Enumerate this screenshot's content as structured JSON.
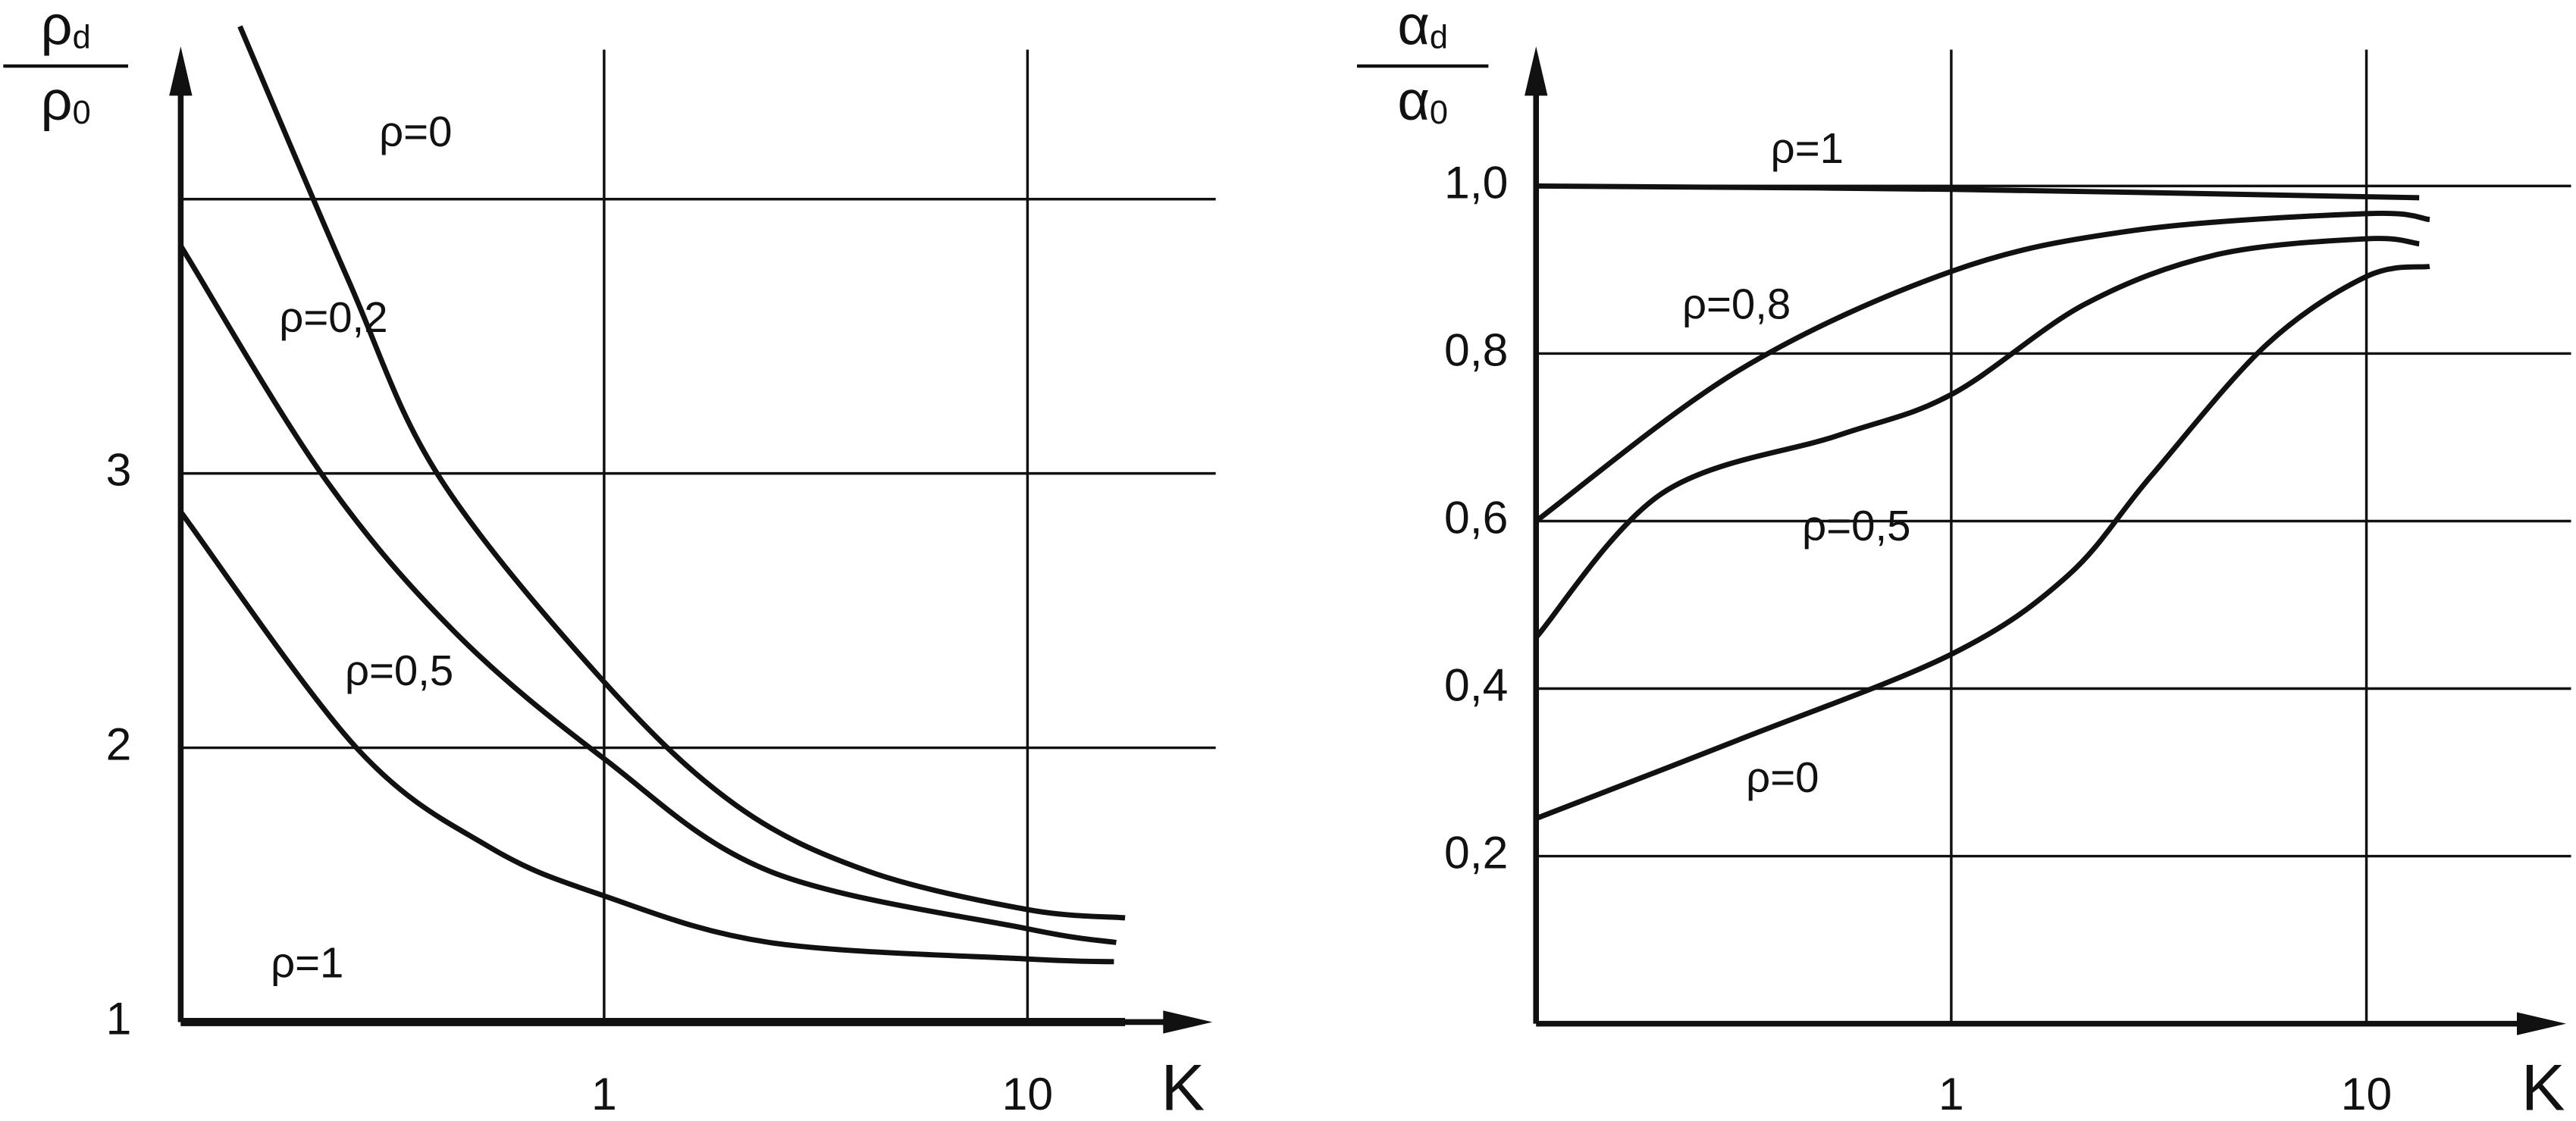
{
  "chart_data": [
    {
      "type": "line",
      "xscale": "log",
      "x_label": "K",
      "y_label": {
        "numerator": [
          "ρ",
          "d"
        ],
        "denominator": [
          "ρ",
          "0"
        ]
      },
      "xlim": [
        0.1,
        25
      ],
      "xticks": [
        1,
        10
      ],
      "ylim": [
        1,
        4.5
      ],
      "yticks": [
        1,
        2,
        3
      ],
      "ygrid": [
        2,
        3,
        4
      ],
      "grid": true,
      "color": "#111",
      "series": [
        {
          "name": "ρ=0",
          "x": [
            0.138,
            0.248,
            0.407,
            1,
            2.05,
            4.2,
            10,
            17
          ],
          "values": [
            4.63,
            3.71,
            2.99,
            2.24,
            1.79,
            1.55,
            1.41,
            1.38
          ]
        },
        {
          "name": "ρ=0,2",
          "x": [
            0.1,
            0.217,
            0.445,
            1,
            2.46,
            10,
            16.2
          ],
          "values": [
            3.83,
            2.99,
            2.42,
            1.96,
            1.55,
            1.34,
            1.29
          ]
        },
        {
          "name": "ρ=0,5",
          "x": [
            0.1,
            0.26,
            0.533,
            1,
            2.46,
            10,
            16
          ],
          "values": [
            2.86,
            2.0,
            1.64,
            1.46,
            1.29,
            1.23,
            1.22
          ]
        },
        {
          "name": "ρ=1",
          "x": [
            0.1,
            17
          ],
          "values": [
            1,
            1
          ]
        }
      ]
    },
    {
      "type": "line",
      "xscale": "log",
      "x_label": "K",
      "y_label": {
        "numerator": [
          "α",
          "d"
        ],
        "denominator": [
          "α",
          "0"
        ]
      },
      "xlim": [
        0.1,
        25
      ],
      "xticks": [
        1,
        10
      ],
      "ylim": [
        0,
        1.15
      ],
      "yticks": [
        {
          "value": 0.2,
          "label": "0,2"
        },
        {
          "value": 0.4,
          "label": "0,4"
        },
        {
          "value": 0.6,
          "label": "0,6"
        },
        {
          "value": 0.8,
          "label": "0,8"
        },
        {
          "value": 1.0,
          "label": "1,0"
        }
      ],
      "grid": true,
      "color": "#111",
      "series": [
        {
          "name": "ρ=1",
          "x": [
            0.1,
            1,
            13.4
          ],
          "values": [
            1.0,
            0.996,
            0.986
          ]
        },
        {
          "name": "ρ=0,8",
          "x": [
            0.1,
            0.308,
            1,
            2.76,
            10,
            14.2
          ],
          "values": [
            0.6,
            0.78,
            0.898,
            0.947,
            0.967,
            0.96
          ]
        },
        {
          "name": "ρ=0,5",
          "x": [
            0.1,
            0.201,
            0.532,
            1,
            2.1,
            4.35,
            10,
            13.4
          ],
          "values": [
            0.461,
            0.633,
            0.702,
            0.751,
            0.859,
            0.918,
            0.937,
            0.931
          ]
        },
        {
          "name": "ρ=0",
          "x": [
            0.1,
            0.308,
            1,
            1.91,
            3.02,
            5.73,
            10,
            14.2
          ],
          "values": [
            0.245,
            0.339,
            0.441,
            0.535,
            0.653,
            0.81,
            0.892,
            0.904
          ]
        }
      ]
    }
  ]
}
